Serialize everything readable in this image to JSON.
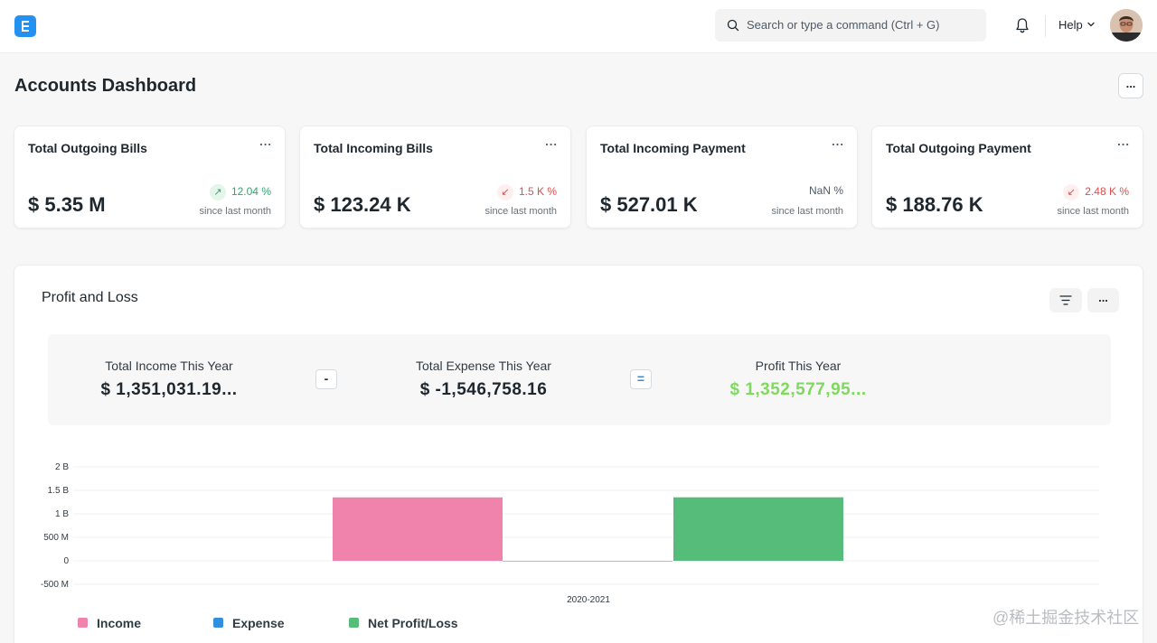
{
  "navbar": {
    "search_placeholder": "Search or type a command (Ctrl + G)",
    "help_label": "Help",
    "logo_letter": "E"
  },
  "page": {
    "title": "Accounts Dashboard",
    "menu_label": "..."
  },
  "cards": [
    {
      "title": "Total Outgoing Bills",
      "value": "$ 5.35 M",
      "change": "12.04 %",
      "direction": "up",
      "since": "since last month",
      "menu": "..."
    },
    {
      "title": "Total Incoming Bills",
      "value": "$ 123.24 K",
      "change": "1.5 K %",
      "direction": "down",
      "since": "since last month",
      "menu": "..."
    },
    {
      "title": "Total Incoming Payment",
      "value": "$ 527.01 K",
      "change": "NaN %",
      "direction": "neutral",
      "since": "since last month",
      "menu": "..."
    },
    {
      "title": "Total Outgoing Payment",
      "value": "$ 188.76 K",
      "change": "2.48 K %",
      "direction": "down",
      "since": "since last month",
      "menu": "..."
    }
  ],
  "profit_loss": {
    "title": "Profit and Loss",
    "menu_label": "...",
    "income_label": "Total Income This Year",
    "income_value": "$ 1,351,031.19...",
    "minus_op": "-",
    "expense_label": "Total Expense This Year",
    "expense_value": "$ -1,546,758.16",
    "equals_op": "=",
    "profit_label": "Profit This Year",
    "profit_value": "$ 1,352,577,95..."
  },
  "colors": {
    "income": "#f083ab",
    "expense": "#2f8fe0",
    "net": "#55bd79",
    "profit_text": "#7fd85f"
  },
  "chart_data": {
    "type": "bar",
    "categories": [
      "2020-2021"
    ],
    "series": [
      {
        "name": "Income",
        "values": [
          1351031190
        ]
      },
      {
        "name": "Expense",
        "values": [
          -1546758.16
        ]
      },
      {
        "name": "Net Profit/Loss",
        "values": [
          1352577950
        ]
      }
    ],
    "y_ticks": [
      "2 B",
      "1.5 B",
      "1 B",
      "500 M",
      "0",
      "-500 M"
    ],
    "ylim": [
      -500000000,
      2000000000
    ],
    "grid": true,
    "legend_position": "bottom-left"
  },
  "watermark": "@稀土掘金技术社区"
}
